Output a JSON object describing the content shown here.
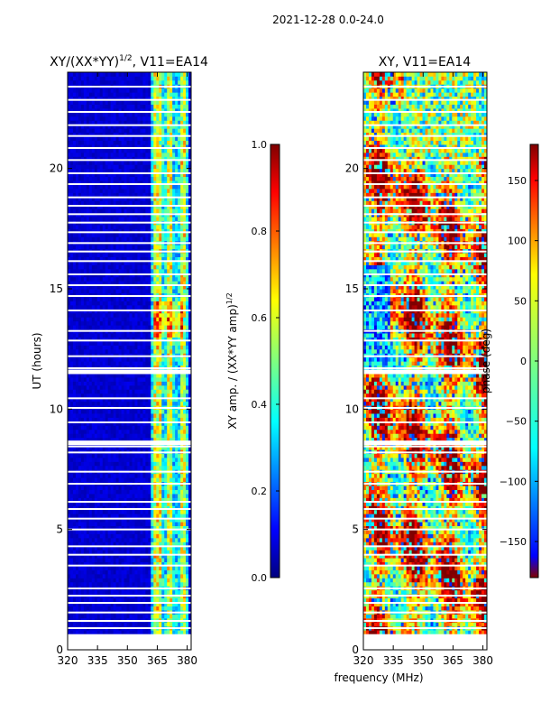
{
  "figure": {
    "suptitle": "2021-12-28 0.0-24.0",
    "shared_xlabel": "frequency (MHz)"
  },
  "colors": {
    "jet": [
      "#00007f",
      "#0000ff",
      "#007fff",
      "#00ffff",
      "#7fff7f",
      "#ffff00",
      "#ff7f00",
      "#ff0000",
      "#7f0000"
    ],
    "axis": "#000000",
    "gap": "#ffffff"
  },
  "chart_data": [
    {
      "type": "heatmap",
      "id": "amp",
      "title": "XY/(XX*YY)$^{1/2}$, V11=EA14",
      "title_main": "XY/(XX*YY)",
      "title_sup": "1/2",
      "title_tail": ", V11=EA14",
      "xlabel": "",
      "ylabel": "UT (hours)",
      "xlim": [
        320,
        382
      ],
      "ylim": [
        0,
        24
      ],
      "xticks": [
        320,
        335,
        350,
        365,
        380
      ],
      "yticks": [
        0,
        5,
        10,
        15,
        20
      ],
      "colorbar": {
        "label": "XY amp. / (XX*YY amp)$^{1/2}$",
        "label_main": "XY amp. / (XX*YY amp)",
        "label_sup": "1/2",
        "range": [
          0.0,
          1.0
        ],
        "ticks": [
          0.0,
          0.2,
          0.4,
          0.6,
          0.8,
          1.0
        ],
        "ticklabels": [
          "0.0",
          "0.2",
          "0.4",
          "0.6",
          "0.8",
          "1.0"
        ]
      },
      "data_start_hour": 0.65,
      "data_end_hour": 24.0,
      "flagged_hours": [
        0.9,
        1.2,
        1.55,
        1.95,
        2.25,
        2.55,
        3.5,
        3.95,
        4.3,
        5.0,
        5.45,
        5.85,
        6.15,
        6.9,
        7.4,
        8.2,
        8.45,
        9.45,
        10.05,
        10.45,
        11.7,
        12.2,
        12.85,
        13.25,
        14.1,
        14.7,
        15.15,
        15.6,
        16.15,
        16.55,
        16.9,
        17.35,
        17.75,
        18.1,
        18.45,
        18.8,
        19.35,
        19.8,
        20.35,
        20.85,
        21.35,
        21.8,
        22.35,
        22.85,
        23.4
      ],
      "flagged_wide_hours": [
        8.6,
        11.55
      ],
      "rfi_band_mhz": [
        362,
        381
      ],
      "amp_background": 0.05,
      "amp_band_level": 0.45
    },
    {
      "type": "heatmap",
      "id": "phase",
      "title": "XY, V11=EA14",
      "xlabel": "",
      "ylabel": "",
      "xlim": [
        320,
        382
      ],
      "ylim": [
        0,
        24
      ],
      "xticks": [
        320,
        335,
        350,
        365,
        380
      ],
      "yticks": [
        0,
        5,
        10,
        15,
        20
      ],
      "colorbar": {
        "label": "phase (deg)",
        "range": [
          -180,
          180
        ],
        "ticks": [
          -150,
          -100,
          -50,
          0,
          50,
          100,
          150
        ],
        "ticklabels": [
          "−150",
          "−100",
          "−50",
          "0",
          "50",
          "100",
          "150"
        ]
      },
      "data_start_hour": 0.65,
      "data_end_hour": 24.0,
      "flagged_hours": [
        0.9,
        1.2,
        1.55,
        1.95,
        2.25,
        2.55,
        3.5,
        3.95,
        4.3,
        5.0,
        5.45,
        5.85,
        6.15,
        6.9,
        7.4,
        8.2,
        8.45,
        9.45,
        10.05,
        10.45,
        11.7,
        12.2,
        12.85,
        13.25,
        14.1,
        14.7,
        15.15,
        15.6,
        16.15,
        16.55,
        16.9,
        17.35,
        17.75,
        18.1,
        18.45,
        18.8,
        19.35,
        19.8,
        20.35,
        20.85,
        21.35,
        21.8,
        22.35,
        22.85,
        23.4
      ],
      "flagged_wide_hours": [
        8.6,
        11.55
      ]
    }
  ]
}
